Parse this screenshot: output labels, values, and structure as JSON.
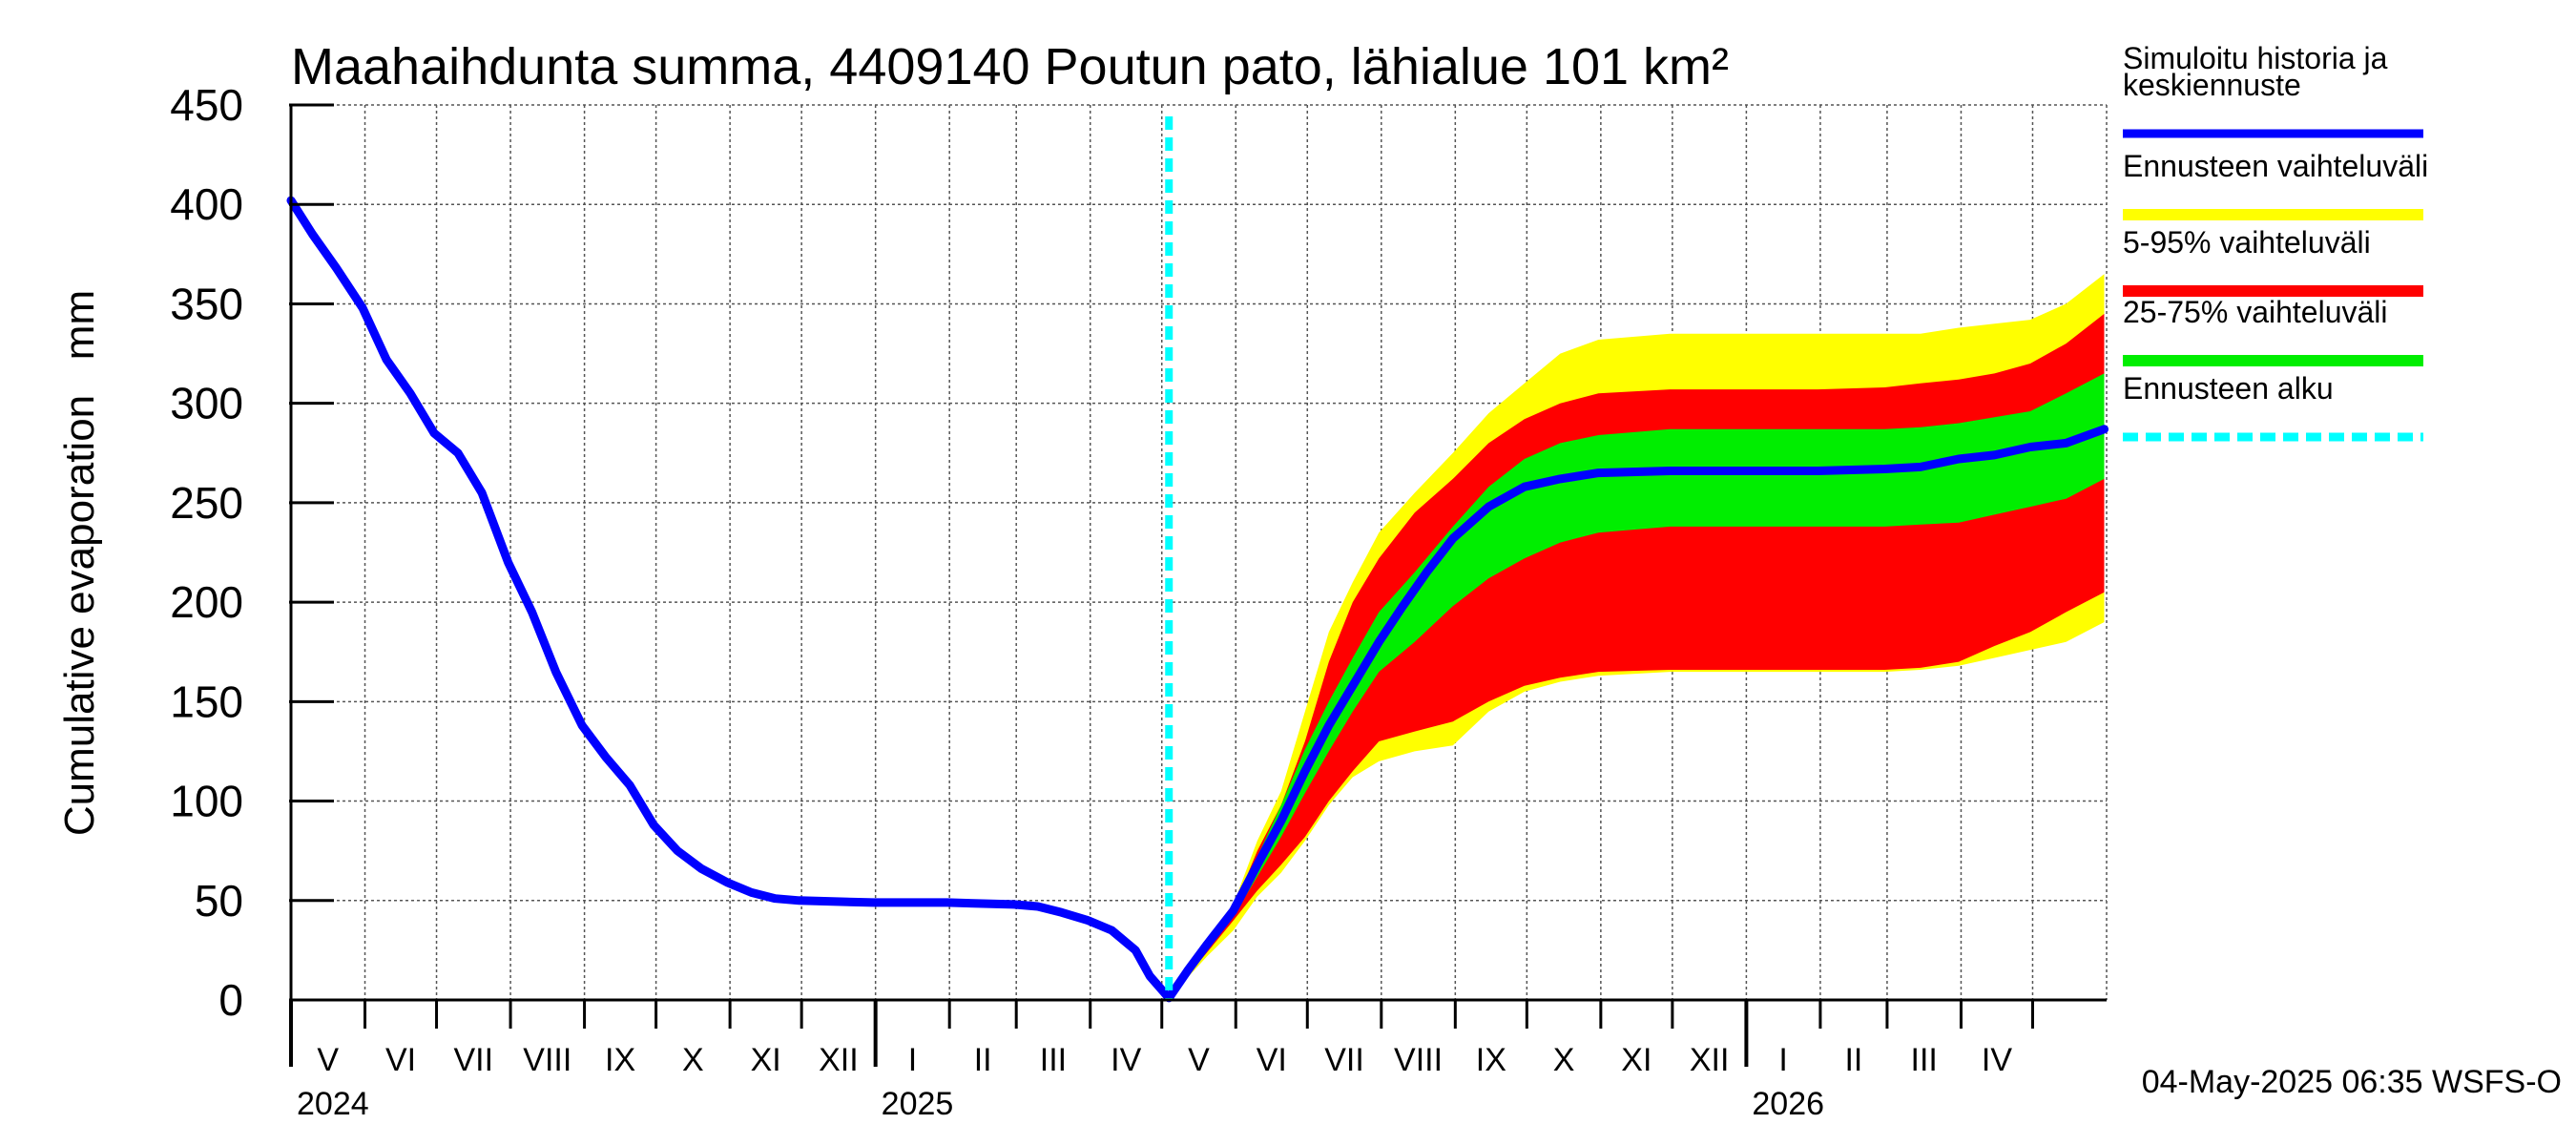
{
  "chart_data": {
    "type": "area",
    "title": "Maahaihdunta summa, 4409140 Poutun pato, lähialue 101 km²",
    "ylabel": "Cumulative evaporation   mm",
    "xlabel": "",
    "ylim": [
      0,
      450
    ],
    "yticks": [
      "0",
      "50",
      "100",
      "150",
      "200",
      "250",
      "300",
      "350",
      "400",
      "450"
    ],
    "xlim": [
      "2024-05-01",
      "2026-05-31"
    ],
    "months": [
      {
        "label": "V",
        "start": "2024-05-01"
      },
      {
        "label": "VI",
        "start": "2024-06-01"
      },
      {
        "label": "VII",
        "start": "2024-07-01"
      },
      {
        "label": "VIII",
        "start": "2024-08-01"
      },
      {
        "label": "IX",
        "start": "2024-09-01"
      },
      {
        "label": "X",
        "start": "2024-10-01"
      },
      {
        "label": "XI",
        "start": "2024-11-01"
      },
      {
        "label": "XII",
        "start": "2024-12-01"
      },
      {
        "label": "I",
        "start": "2025-01-01"
      },
      {
        "label": "II",
        "start": "2025-02-01"
      },
      {
        "label": "III",
        "start": "2025-03-01"
      },
      {
        "label": "IV",
        "start": "2025-04-01"
      },
      {
        "label": "V",
        "start": "2025-05-01"
      },
      {
        "label": "VI",
        "start": "2025-06-01"
      },
      {
        "label": "VII",
        "start": "2025-07-01"
      },
      {
        "label": "VIII",
        "start": "2025-08-01"
      },
      {
        "label": "IX",
        "start": "2025-09-01"
      },
      {
        "label": "X",
        "start": "2025-10-01"
      },
      {
        "label": "XI",
        "start": "2025-11-01"
      },
      {
        "label": "XII",
        "start": "2025-12-01"
      },
      {
        "label": "I",
        "start": "2026-01-01"
      },
      {
        "label": "II",
        "start": "2026-02-01"
      },
      {
        "label": "III",
        "start": "2026-03-01"
      },
      {
        "label": "IV",
        "start": "2026-04-01"
      },
      {
        "label": "",
        "start": "2026-05-01"
      }
    ],
    "years": [
      {
        "label": "2024",
        "start": "2024-05-01"
      },
      {
        "label": "2025",
        "start": "2025-01-01"
      },
      {
        "label": "2026",
        "start": "2026-01-01"
      }
    ],
    "forecast_start": "2025-05-04",
    "grid": true,
    "legend_position": "right",
    "legend": [
      {
        "label": "Simuloitu historia ja\nkeskiennuste",
        "color": "#0000ff",
        "style": "solid"
      },
      {
        "label": "Ennusteen vaihteluväli",
        "color": "#ffff00",
        "style": "band"
      },
      {
        "label": "5-95% vaihteluväli",
        "color": "#ff0000",
        "style": "band"
      },
      {
        "label": "25-75% vaihteluväli",
        "color": "#00ee00",
        "style": "band"
      },
      {
        "label": "Ennusteen alku",
        "color": "#00ffff",
        "style": "dashed"
      }
    ],
    "series": [
      {
        "name": "Simuloitu historia ja keskiennuste",
        "color": "#0000ff",
        "points": [
          [
            "2024-05-01",
            402
          ],
          [
            "2024-05-10",
            385
          ],
          [
            "2024-05-20",
            368
          ],
          [
            "2024-05-31",
            348
          ],
          [
            "2024-06-10",
            322
          ],
          [
            "2024-06-20",
            305
          ],
          [
            "2024-06-30",
            285
          ],
          [
            "2024-07-10",
            275
          ],
          [
            "2024-07-20",
            255
          ],
          [
            "2024-07-31",
            220
          ],
          [
            "2024-08-10",
            195
          ],
          [
            "2024-08-20",
            165
          ],
          [
            "2024-08-31",
            138
          ],
          [
            "2024-09-10",
            122
          ],
          [
            "2024-09-20",
            108
          ],
          [
            "2024-09-30",
            88
          ],
          [
            "2024-10-10",
            75
          ],
          [
            "2024-10-20",
            66
          ],
          [
            "2024-10-31",
            59
          ],
          [
            "2024-11-10",
            54
          ],
          [
            "2024-11-20",
            51
          ],
          [
            "2024-11-30",
            50
          ],
          [
            "2024-12-31",
            49
          ],
          [
            "2025-01-31",
            49
          ],
          [
            "2025-02-28",
            48
          ],
          [
            "2025-03-10",
            47
          ],
          [
            "2025-03-20",
            44
          ],
          [
            "2025-03-31",
            40
          ],
          [
            "2025-04-10",
            35
          ],
          [
            "2025-04-20",
            25
          ],
          [
            "2025-04-26",
            12
          ],
          [
            "2025-05-04",
            1
          ],
          [
            "2025-05-12",
            15
          ],
          [
            "2025-05-20",
            28
          ],
          [
            "2025-05-31",
            45
          ],
          [
            "2025-06-10",
            68
          ],
          [
            "2025-06-20",
            90
          ],
          [
            "2025-06-30",
            115
          ],
          [
            "2025-07-10",
            138
          ],
          [
            "2025-07-20",
            158
          ],
          [
            "2025-07-31",
            180
          ],
          [
            "2025-08-10",
            198
          ],
          [
            "2025-08-20",
            215
          ],
          [
            "2025-08-31",
            232
          ],
          [
            "2025-09-15",
            248
          ],
          [
            "2025-09-30",
            258
          ],
          [
            "2025-10-15",
            262
          ],
          [
            "2025-10-31",
            265
          ],
          [
            "2025-11-30",
            266
          ],
          [
            "2025-12-31",
            266
          ],
          [
            "2026-01-31",
            266
          ],
          [
            "2026-02-28",
            267
          ],
          [
            "2026-03-15",
            268
          ],
          [
            "2026-03-31",
            272
          ],
          [
            "2026-04-15",
            274
          ],
          [
            "2026-04-30",
            278
          ],
          [
            "2026-05-15",
            280
          ],
          [
            "2026-05-31",
            287
          ]
        ]
      }
    ],
    "bands": [
      {
        "name": "Ennusteen vaihteluväli",
        "color": "#ffff00",
        "points": [
          [
            "2025-05-04",
            1,
            1
          ],
          [
            "2025-05-20",
            22,
            30
          ],
          [
            "2025-05-31",
            35,
            48
          ],
          [
            "2025-06-10",
            52,
            80
          ],
          [
            "2025-06-20",
            64,
            105
          ],
          [
            "2025-06-30",
            80,
            145
          ],
          [
            "2025-07-10",
            98,
            185
          ],
          [
            "2025-07-20",
            112,
            210
          ],
          [
            "2025-07-31",
            120,
            235
          ],
          [
            "2025-08-15",
            125,
            255
          ],
          [
            "2025-08-31",
            128,
            275
          ],
          [
            "2025-09-15",
            145,
            295
          ],
          [
            "2025-09-30",
            155,
            310
          ],
          [
            "2025-10-15",
            160,
            325
          ],
          [
            "2025-10-31",
            163,
            332
          ],
          [
            "2025-11-30",
            165,
            335
          ],
          [
            "2025-12-31",
            165,
            335
          ],
          [
            "2026-01-31",
            165,
            335
          ],
          [
            "2026-02-28",
            165,
            335
          ],
          [
            "2026-03-15",
            166,
            335
          ],
          [
            "2026-03-31",
            168,
            338
          ],
          [
            "2026-04-15",
            172,
            340
          ],
          [
            "2026-04-30",
            176,
            342
          ],
          [
            "2026-05-15",
            180,
            350
          ],
          [
            "2026-05-31",
            190,
            365
          ]
        ]
      },
      {
        "name": "5-95% vaihteluväli",
        "color": "#ff0000",
        "points": [
          [
            "2025-05-04",
            1,
            1
          ],
          [
            "2025-05-20",
            24,
            28
          ],
          [
            "2025-05-31",
            40,
            46
          ],
          [
            "2025-06-10",
            55,
            75
          ],
          [
            "2025-06-20",
            68,
            98
          ],
          [
            "2025-06-30",
            82,
            130
          ],
          [
            "2025-07-10",
            100,
            170
          ],
          [
            "2025-07-20",
            115,
            200
          ],
          [
            "2025-07-31",
            130,
            222
          ],
          [
            "2025-08-15",
            135,
            245
          ],
          [
            "2025-08-31",
            140,
            262
          ],
          [
            "2025-09-15",
            150,
            280
          ],
          [
            "2025-09-30",
            158,
            292
          ],
          [
            "2025-10-15",
            162,
            300
          ],
          [
            "2025-10-31",
            165,
            305
          ],
          [
            "2025-11-30",
            166,
            307
          ],
          [
            "2025-12-31",
            166,
            307
          ],
          [
            "2026-01-31",
            166,
            307
          ],
          [
            "2026-02-28",
            166,
            308
          ],
          [
            "2026-03-15",
            167,
            310
          ],
          [
            "2026-03-31",
            170,
            312
          ],
          [
            "2026-04-15",
            178,
            315
          ],
          [
            "2026-04-30",
            185,
            320
          ],
          [
            "2026-05-15",
            195,
            330
          ],
          [
            "2026-05-31",
            205,
            345
          ]
        ]
      },
      {
        "name": "25-75% vaihteluväli",
        "color": "#00ee00",
        "points": [
          [
            "2025-05-04",
            1,
            1
          ],
          [
            "2025-05-20",
            26,
            29
          ],
          [
            "2025-05-31",
            42,
            47
          ],
          [
            "2025-06-10",
            62,
            72
          ],
          [
            "2025-06-20",
            82,
            98
          ],
          [
            "2025-06-30",
            104,
            126
          ],
          [
            "2025-07-10",
            125,
            150
          ],
          [
            "2025-07-20",
            145,
            172
          ],
          [
            "2025-07-31",
            165,
            195
          ],
          [
            "2025-08-15",
            180,
            215
          ],
          [
            "2025-08-31",
            198,
            238
          ],
          [
            "2025-09-15",
            212,
            258
          ],
          [
            "2025-09-30",
            222,
            272
          ],
          [
            "2025-10-15",
            230,
            280
          ],
          [
            "2025-10-31",
            235,
            284
          ],
          [
            "2025-11-30",
            238,
            287
          ],
          [
            "2025-12-31",
            238,
            287
          ],
          [
            "2026-01-31",
            238,
            287
          ],
          [
            "2026-02-28",
            238,
            287
          ],
          [
            "2026-03-15",
            239,
            288
          ],
          [
            "2026-03-31",
            240,
            290
          ],
          [
            "2026-04-15",
            244,
            293
          ],
          [
            "2026-04-30",
            248,
            296
          ],
          [
            "2026-05-15",
            252,
            305
          ],
          [
            "2026-05-31",
            262,
            315
          ]
        ]
      }
    ],
    "footer": "04-May-2025 06:35 WSFS-O"
  }
}
